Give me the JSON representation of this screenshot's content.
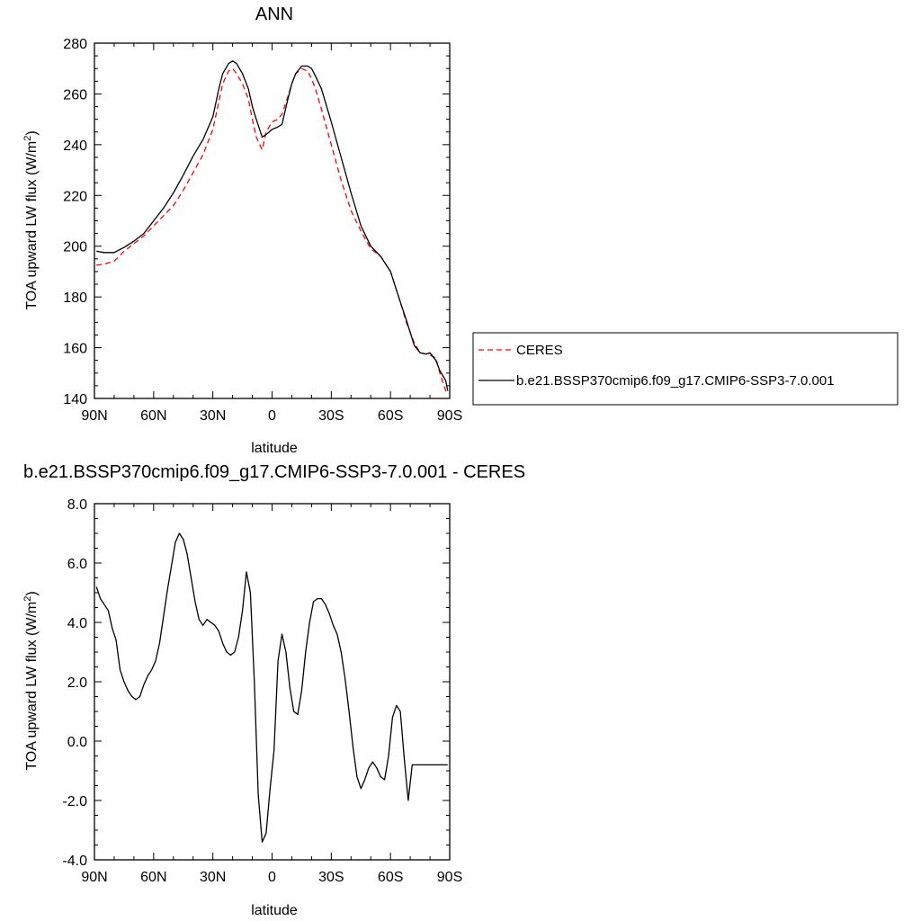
{
  "chart_data": [
    {
      "type": "line",
      "title": "ANN",
      "xlabel": "latitude",
      "ylabel": "TOA upward LW flux (W/m²)",
      "xlim": [
        90,
        -90
      ],
      "ylim": [
        140,
        280
      ],
      "x_tick_values": [
        90,
        60,
        30,
        0,
        -30,
        -60,
        -90
      ],
      "x_tick_labels": [
        "90N",
        "60N",
        "30N",
        "0",
        "30S",
        "60S",
        "90S"
      ],
      "y_tick_values": [
        140,
        160,
        180,
        200,
        220,
        240,
        260,
        280
      ],
      "y_tick_labels": [
        "140",
        "160",
        "180",
        "200",
        "220",
        "240",
        "260",
        "280"
      ],
      "legend_placement": "right",
      "series": [
        {
          "name": "CERES",
          "color": "#ff0000",
          "style": "dashed",
          "x": [
            89,
            85,
            80,
            75,
            70,
            65,
            60,
            55,
            50,
            45,
            40,
            35,
            30,
            27,
            25,
            22,
            20,
            18,
            15,
            12,
            10,
            8,
            5,
            3,
            0,
            -3,
            -5,
            -8,
            -10,
            -12,
            -15,
            -18,
            -20,
            -22,
            -25,
            -30,
            -35,
            -40,
            -45,
            -50,
            -55,
            -60,
            -65,
            -68,
            -70,
            -72,
            -75,
            -78,
            -80,
            -83,
            -85,
            -88,
            -89
          ],
          "y": [
            192.5,
            193,
            194,
            198,
            201,
            204,
            208,
            212,
            216,
            222,
            229,
            236,
            246,
            257,
            264,
            269,
            270,
            268,
            264,
            258,
            250,
            243,
            238,
            245,
            249,
            250,
            252,
            259,
            264,
            268,
            270,
            269,
            266,
            262,
            254,
            240,
            226,
            214,
            206,
            199,
            196,
            190,
            178,
            170,
            166,
            162,
            158,
            157.5,
            157,
            156,
            150,
            143,
            143
          ]
        },
        {
          "name": "b.e21.BSSP370cmip6.f09_g17.CMIP6-SSP3-7.0.001",
          "color": "#000000",
          "style": "solid",
          "x": [
            89,
            85,
            80,
            75,
            70,
            65,
            60,
            55,
            50,
            45,
            40,
            35,
            30,
            27,
            25,
            22,
            20,
            18,
            15,
            12,
            10,
            8,
            5,
            3,
            0,
            -3,
            -5,
            -8,
            -10,
            -12,
            -15,
            -18,
            -20,
            -22,
            -25,
            -30,
            -35,
            -40,
            -45,
            -50,
            -55,
            -60,
            -65,
            -68,
            -70,
            -72,
            -75,
            -78,
            -80,
            -83,
            -85,
            -88,
            -89
          ],
          "y": [
            198,
            197.5,
            197.5,
            199.5,
            202,
            205,
            210,
            215,
            221,
            228,
            235.5,
            242,
            251,
            262,
            268,
            272,
            273,
            272,
            268,
            262,
            255,
            250,
            243,
            244,
            246,
            247,
            248,
            258,
            264,
            268,
            271,
            271,
            270,
            267,
            262,
            249,
            235,
            221,
            208,
            200,
            196,
            190,
            178,
            171,
            166,
            161,
            158,
            157.5,
            158,
            155,
            151,
            147,
            143
          ]
        }
      ]
    },
    {
      "type": "line",
      "title": "b.e21.BSSP370cmip6.f09_g17.CMIP6-SSP3-7.0.001 - CERES",
      "xlabel": "latitude",
      "ylabel": "TOA upward LW flux (W/m²)",
      "xlim": [
        90,
        -90
      ],
      "ylim": [
        -4,
        8
      ],
      "x_tick_values": [
        90,
        60,
        30,
        0,
        -30,
        -60,
        -90
      ],
      "x_tick_labels": [
        "90N",
        "60N",
        "30N",
        "0",
        "30S",
        "60S",
        "90S"
      ],
      "y_tick_values": [
        -4,
        -2,
        0,
        2,
        4,
        6,
        8
      ],
      "y_tick_labels": [
        "-4.0",
        "-2.0",
        "0.0",
        "2.0",
        "4.0",
        "6.0",
        "8.0"
      ],
      "series": [
        {
          "color": "#000000",
          "style": "solid",
          "x": [
            89,
            87,
            85,
            83,
            81,
            79,
            77,
            75,
            73,
            71,
            69,
            67,
            65,
            63,
            61,
            59,
            57,
            55,
            53,
            51,
            49,
            47,
            45,
            43,
            41,
            39,
            37,
            35,
            33,
            31,
            29,
            27,
            25,
            23,
            21,
            19,
            17,
            15,
            13,
            11,
            9,
            7,
            5,
            3,
            1,
            -1,
            -3,
            -5,
            -7,
            -9,
            -11,
            -13,
            -15,
            -17,
            -19,
            -21,
            -23,
            -25,
            -27,
            -29,
            -31,
            -33,
            -35,
            -37,
            -39,
            -41,
            -43,
            -45,
            -47,
            -49,
            -51,
            -53,
            -55,
            -57,
            -59,
            -61,
            -63,
            -65,
            -67,
            -69,
            -71,
            -73,
            -75,
            -77,
            -79,
            -81,
            -83,
            -85,
            -87,
            -89
          ],
          "y": [
            5.2,
            4.8,
            4.6,
            4.4,
            3.8,
            3.4,
            2.4,
            2.0,
            1.7,
            1.5,
            1.4,
            1.5,
            1.9,
            2.2,
            2.4,
            2.7,
            3.3,
            4.2,
            5.1,
            5.9,
            6.7,
            7.0,
            6.8,
            6.3,
            5.5,
            4.7,
            4.1,
            3.9,
            4.1,
            4.0,
            3.9,
            3.7,
            3.3,
            3.0,
            2.9,
            3.0,
            3.5,
            4.4,
            5.7,
            5.0,
            2.0,
            -1.8,
            -3.4,
            -3.1,
            -1.6,
            -0.3,
            2.7,
            3.6,
            3.0,
            1.8,
            1.0,
            0.9,
            1.7,
            3.0,
            4.0,
            4.7,
            4.8,
            4.8,
            4.6,
            4.3,
            3.9,
            3.6,
            3.0,
            2.1,
            1.0,
            -0.2,
            -1.2,
            -1.6,
            -1.3,
            -0.9,
            -0.7,
            -0.9,
            -1.2,
            -1.3,
            -0.5,
            0.8,
            1.2,
            1.0,
            -0.6,
            -2.0,
            -0.8,
            -0.8,
            -0.8,
            -0.8,
            -0.8,
            -0.8,
            -0.8,
            -0.8,
            -0.8,
            -0.8
          ]
        }
      ]
    }
  ]
}
